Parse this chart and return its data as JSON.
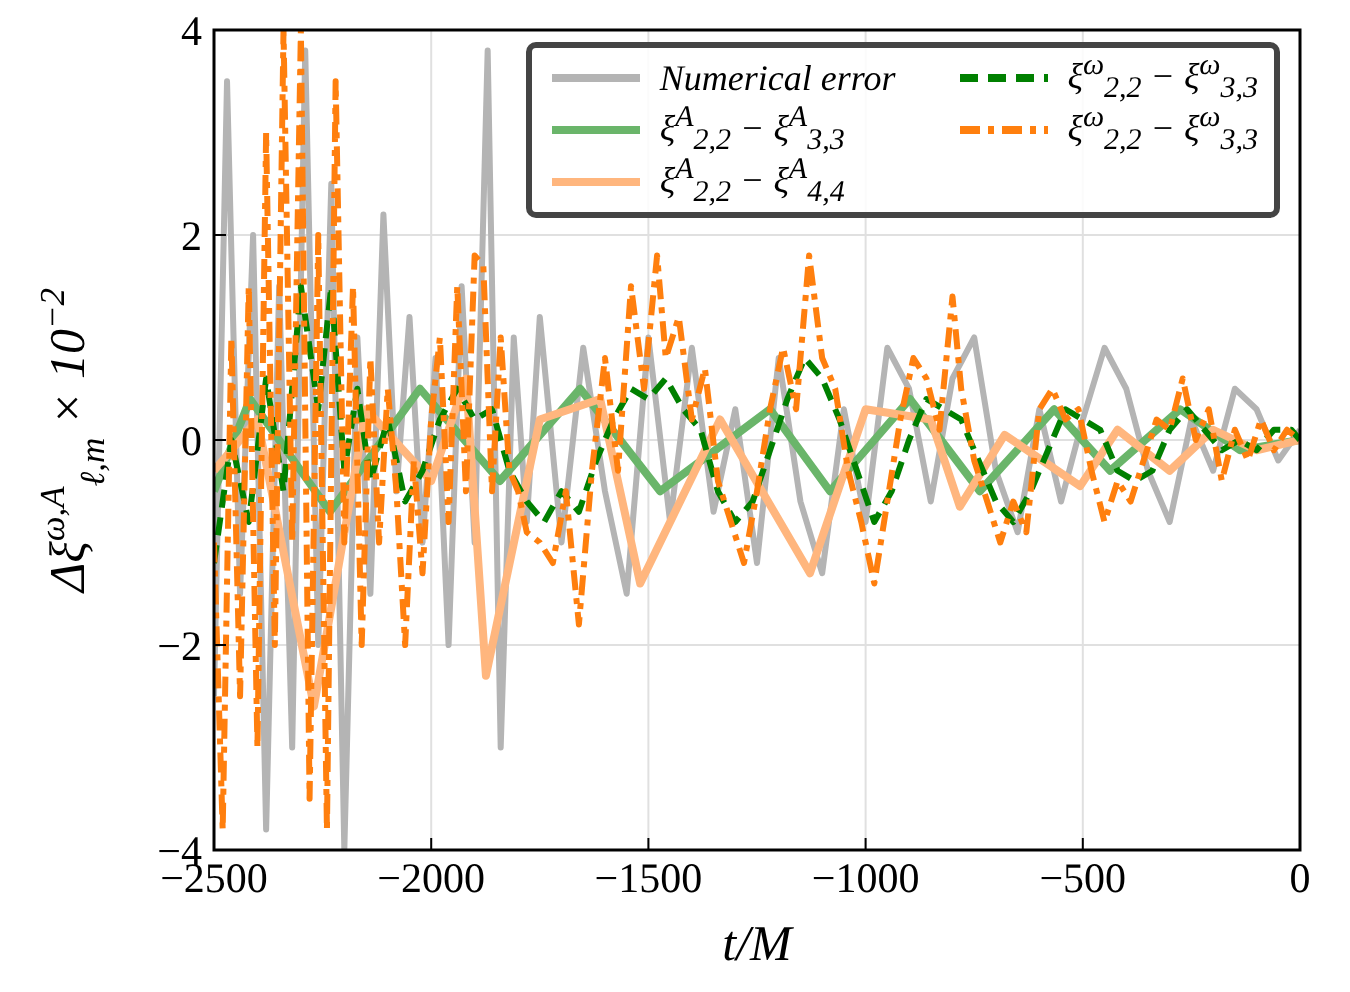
{
  "chart_data": {
    "type": "line",
    "xlabel": "t/M",
    "ylabel": "Δξ$^{ω,A}$$_{ℓ,m}$ × 10$^{−2}$",
    "xlim": [
      -2500,
      0
    ],
    "xticks": [
      -2500,
      -2000,
      -1500,
      -1000,
      -500,
      0
    ],
    "ylim": [
      -4,
      4
    ],
    "yticks": [
      -4,
      -2,
      0,
      2,
      4
    ],
    "grid": true,
    "legend": "top right",
    "marker": "none",
    "series": [
      {
        "name": "Numerical error",
        "color": "#b4b4b4",
        "line_style": "solid",
        "x": [
          -2500,
          -2470,
          -2440,
          -2410,
          -2380,
          -2350,
          -2320,
          -2290,
          -2260,
          -2230,
          -2200,
          -2170,
          -2140,
          -2110,
          -2080,
          -2050,
          -2020,
          -1990,
          -1960,
          -1930,
          -1900,
          -1870,
          -1840,
          -1810,
          -1780,
          -1750,
          -1700,
          -1650,
          -1600,
          -1550,
          -1500,
          -1450,
          -1400,
          -1350,
          -1300,
          -1250,
          -1200,
          -1150,
          -1100,
          -1050,
          -1000,
          -950,
          -900,
          -850,
          -800,
          -750,
          -700,
          -650,
          -600,
          -550,
          -500,
          -450,
          -400,
          -350,
          -300,
          -250,
          -200,
          -150,
          -100,
          -50,
          0
        ],
        "values": [
          -2.5,
          3.5,
          -1.5,
          2.0,
          -3.8,
          1.5,
          -3.0,
          3.8,
          -2.0,
          2.5,
          -4.0,
          1.0,
          -1.5,
          2.2,
          -0.5,
          1.2,
          -1.0,
          0.8,
          -2.0,
          1.5,
          -1.0,
          3.8,
          -3.0,
          1.0,
          -0.8,
          1.2,
          -1.0,
          0.9,
          -0.5,
          -1.5,
          1.0,
          -0.8,
          0.9,
          -0.7,
          0.3,
          -1.2,
          0.8,
          -0.6,
          -1.3,
          0.3,
          -0.8,
          0.9,
          0.5,
          -0.6,
          0.6,
          1.0,
          -0.3,
          -0.9,
          0.3,
          -0.6,
          0.2,
          0.9,
          0.5,
          -0.3,
          -0.8,
          0.2,
          -0.3,
          0.5,
          0.3,
          -0.2,
          0.1
        ]
      },
      {
        "name": "ξ$^{A}$$_{2,2}$ − ξ$^{A}$$_{3,3}$",
        "color": "#6ab56a",
        "line_style": "solid",
        "x": [
          -2500,
          -2417,
          -2233,
          -2026,
          -1842,
          -1657,
          -1473,
          -1220,
          -1082,
          -898,
          -737,
          -566,
          -437,
          -276,
          -138,
          0
        ],
        "values": [
          -0.5,
          0.4,
          -0.7,
          0.5,
          -0.4,
          0.5,
          -0.5,
          0.3,
          -0.5,
          0.4,
          -0.5,
          0.3,
          -0.3,
          0.3,
          -0.1,
          0.0
        ]
      },
      {
        "name": "ξ$^{A}$$_{2,2}$ − ξ$^{A}$$_{4,4}$",
        "color": "#ffb67e",
        "line_style": "solid",
        "x": [
          -2500,
          -2400,
          -2270,
          -2150,
          -2000,
          -1920,
          -1874,
          -1750,
          -1611,
          -1519,
          -1335,
          -1128,
          -1000,
          -850,
          -783,
          -680,
          -506,
          -420,
          -300,
          -200,
          -100,
          0
        ],
        "values": [
          -0.3,
          0.2,
          -2.6,
          0.3,
          -0.4,
          0.6,
          -2.3,
          0.2,
          0.4,
          -1.4,
          0.2,
          -1.3,
          0.3,
          0.2,
          -0.65,
          0.05,
          -0.45,
          0.1,
          -0.3,
          0.1,
          -0.1,
          0.0
        ]
      },
      {
        "name": "ξ$^{ω}$$_{2,2}$ − ξ$^{ω}$$_{3,3}$",
        "color": "#008000",
        "line_style": "dashed",
        "x": [
          -2500,
          -2460,
          -2420,
          -2380,
          -2340,
          -2300,
          -2260,
          -2230,
          -2200,
          -2170,
          -2140,
          -2100,
          -2060,
          -2020,
          -1980,
          -1940,
          -1900,
          -1860,
          -1820,
          -1780,
          -1740,
          -1700,
          -1660,
          -1620,
          -1580,
          -1540,
          -1500,
          -1460,
          -1420,
          -1380,
          -1340,
          -1300,
          -1260,
          -1220,
          -1180,
          -1140,
          -1100,
          -1060,
          -1020,
          -980,
          -940,
          -900,
          -860,
          -820,
          -780,
          -740,
          -700,
          -660,
          -620,
          -580,
          -540,
          -500,
          -460,
          -420,
          -380,
          -340,
          -300,
          -260,
          -220,
          -180,
          -140,
          -100,
          -60,
          -20,
          0
        ],
        "values": [
          -1.2,
          0.0,
          -0.8,
          0.6,
          -0.5,
          1.5,
          0.3,
          1.5,
          -0.3,
          0.5,
          -0.4,
          0.2,
          -0.6,
          -0.3,
          0.2,
          0.5,
          0.2,
          0.3,
          -0.3,
          -0.6,
          -0.8,
          -0.5,
          -0.7,
          -0.2,
          0.2,
          0.5,
          0.4,
          0.6,
          0.3,
          0.1,
          -0.5,
          -0.8,
          -0.6,
          -0.1,
          0.4,
          0.8,
          0.6,
          0.2,
          -0.3,
          -0.8,
          -0.5,
          0.0,
          0.4,
          0.3,
          0.2,
          -0.2,
          -0.6,
          -0.8,
          -0.5,
          -0.1,
          0.3,
          0.2,
          0.1,
          -0.3,
          -0.4,
          -0.3,
          0.1,
          0.3,
          0.1,
          -0.1,
          0.0,
          -0.1,
          0.1,
          0.1,
          0.0
        ]
      },
      {
        "name": "ξ$^{ω}$$_{2,2}$ − ξ$^{ω}$$_{3,3}$",
        "color": "#ff7f0e",
        "line_style": "dashdot",
        "x": [
          -2500,
          -2480,
          -2460,
          -2440,
          -2420,
          -2400,
          -2380,
          -2360,
          -2340,
          -2320,
          -2300,
          -2280,
          -2260,
          -2240,
          -2220,
          -2200,
          -2180,
          -2160,
          -2140,
          -2120,
          -2100,
          -2080,
          -2060,
          -2040,
          -2020,
          -2000,
          -1980,
          -1960,
          -1940,
          -1920,
          -1900,
          -1880,
          -1860,
          -1840,
          -1820,
          -1800,
          -1780,
          -1750,
          -1720,
          -1690,
          -1660,
          -1630,
          -1600,
          -1570,
          -1540,
          -1510,
          -1480,
          -1460,
          -1430,
          -1400,
          -1370,
          -1340,
          -1310,
          -1280,
          -1250,
          -1220,
          -1190,
          -1160,
          -1130,
          -1100,
          -1070,
          -1040,
          -1010,
          -980,
          -950,
          -920,
          -890,
          -860,
          -830,
          -800,
          -780,
          -750,
          -720,
          -690,
          -660,
          -630,
          -600,
          -570,
          -540,
          -510,
          -480,
          -450,
          -420,
          -390,
          -360,
          -330,
          -300,
          -270,
          -240,
          -210,
          -180,
          -150,
          -120,
          -90,
          -60,
          -30,
          0
        ],
        "values": [
          -1.0,
          -3.8,
          1.0,
          -2.5,
          1.5,
          -3.0,
          3.0,
          -2.0,
          4.0,
          -1.0,
          4.0,
          -3.5,
          2.0,
          -3.8,
          3.5,
          -1.0,
          1.5,
          -2.0,
          0.8,
          -1.0,
          0.5,
          -0.5,
          -2.0,
          -0.2,
          -1.3,
          0.2,
          1.0,
          -0.8,
          1.5,
          -0.5,
          1.8,
          1.7,
          -0.5,
          1.0,
          -0.3,
          -0.5,
          -0.9,
          -1.0,
          -1.2,
          -0.5,
          -1.8,
          -0.3,
          0.8,
          -0.3,
          1.5,
          0.5,
          1.8,
          0.8,
          1.2,
          0.2,
          0.7,
          -0.4,
          -0.8,
          -1.2,
          -0.5,
          0.3,
          0.9,
          0.3,
          1.8,
          0.8,
          0.5,
          -0.3,
          -0.8,
          -1.4,
          -0.6,
          0.2,
          0.8,
          0.6,
          0.1,
          1.4,
          0.5,
          -0.2,
          -0.6,
          -1.0,
          -0.6,
          -0.9,
          0.3,
          0.5,
          0.2,
          0.3,
          -0.3,
          -0.8,
          -0.4,
          -0.6,
          -0.2,
          0.2,
          0.1,
          0.6,
          0.0,
          0.3,
          -0.4,
          0.1,
          -0.2,
          0.2,
          -0.1,
          0.1,
          0.0
        ]
      }
    ]
  }
}
